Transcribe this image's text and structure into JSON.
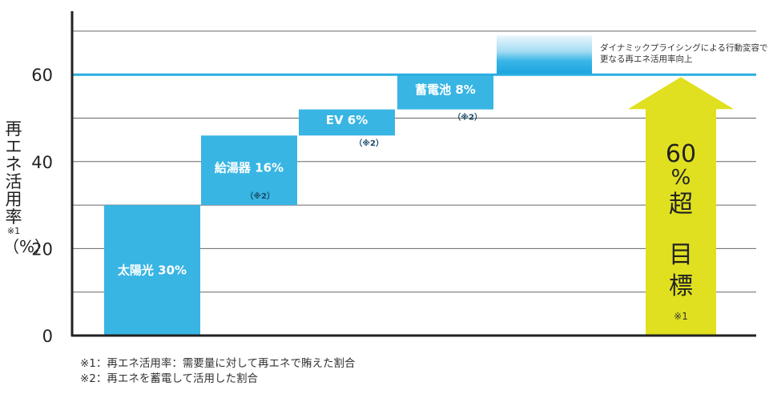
{
  "chart_data": {
    "type": "bar",
    "ylabel": "再エネ活用率",
    "ylabel_mark": "※1",
    "ylabel_unit": "（%）",
    "yticks": [
      0,
      20,
      40,
      60
    ],
    "ylim": [
      0,
      75
    ],
    "target_line": 60,
    "grid": true,
    "steps": [
      {
        "label": "太陽光 30%",
        "note": "",
        "bottom": 0,
        "top": 30
      },
      {
        "label": "給湯器 16%",
        "note": "（※2）",
        "bottom": 30,
        "top": 46
      },
      {
        "label": "EV 6%",
        "note": "（※2）",
        "bottom": 46,
        "top": 52
      },
      {
        "label": "蓄電池 8%",
        "note": "（※2）",
        "bottom": 52,
        "top": 60
      }
    ],
    "dynamic_pricing": {
      "bottom": 60,
      "top": 69,
      "label_line1": "ダイナミックプライシングによる行動変容で",
      "label_line2": "更なる再エネ活用率向上"
    },
    "target_arrow": {
      "value": 60,
      "text_top": "60",
      "text_pct": "%",
      "text_super": "超",
      "text_goal1": "目",
      "text_goal2": "標",
      "mark": "※1"
    },
    "colors": {
      "bar": "#38b5e3",
      "line": "#29aee0",
      "arrow": "#e0e020",
      "grid": "#666666",
      "axis": "#222222"
    }
  },
  "footnotes": [
    "※1：再エネ活用率：需要量に対して再エネで賄えた割合",
    "※2：再エネを蓄電して活用した割合"
  ]
}
